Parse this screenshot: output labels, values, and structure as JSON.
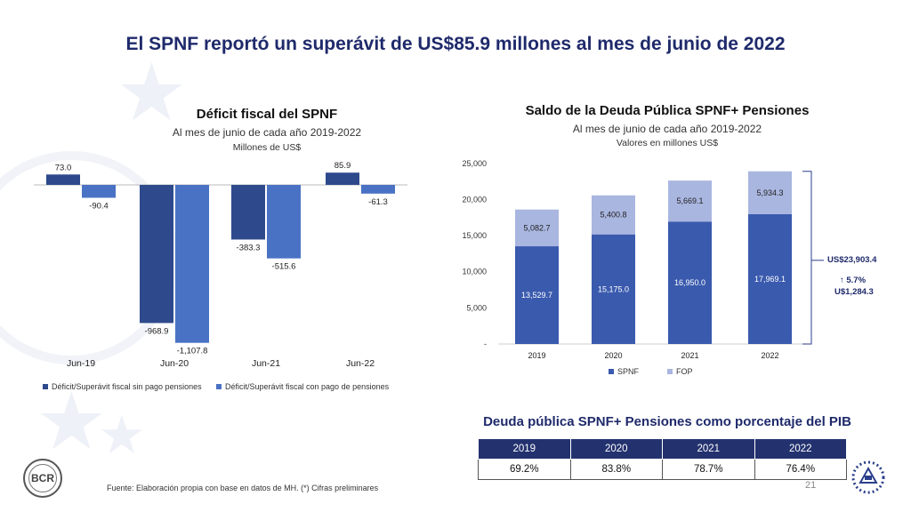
{
  "slide": {
    "title": "El SPNF reportó un superávit de US$85.9 millones al mes de junio de 2022",
    "footer": "Fuente: Elaboración propia con base en datos de MH. (*) Cifras preliminares",
    "page_number": "21",
    "seal_text": "BCR"
  },
  "chart_data": [
    {
      "type": "bar",
      "title": "Déficit fiscal del SPNF",
      "subtitle": "Al mes de junio de cada año 2019-2022",
      "unit_label": "Millones de US$",
      "categories": [
        "Jun-19",
        "Jun-20",
        "Jun-21",
        "Jun-22"
      ],
      "series": [
        {
          "name": "Déficit/Superávit fiscal sin pago pensiones",
          "color": "#2e4a8c",
          "values": [
            73.0,
            -968.9,
            -383.3,
            85.9
          ],
          "labels": [
            "73.0",
            "-968.9",
            "-383.3",
            "85.9"
          ]
        },
        {
          "name": "Déficit/Superávit fiscal con pago de pensiones",
          "color": "#4a72c4",
          "values": [
            -90.4,
            -1107.8,
            -515.6,
            -61.3
          ],
          "labels": [
            "-90.4",
            "-1,107.8",
            "-515.6",
            "-61.3"
          ]
        }
      ],
      "legend": "bottom"
    },
    {
      "type": "bar",
      "stacked": true,
      "title": "Saldo de la Deuda Pública SPNF+ Pensiones",
      "subtitle": "Al mes de junio de cada año 2019-2022",
      "unit_label": "Valores en millones US$",
      "categories": [
        "2019",
        "2020",
        "2021",
        "2022"
      ],
      "series": [
        {
          "name": "SPNF",
          "color": "#3a5aae",
          "values": [
            13529.7,
            15175.0,
            16950.0,
            17969.1
          ],
          "labels": [
            "13,529.7",
            "15,175.0",
            "16,950.0",
            "17,969.1"
          ]
        },
        {
          "name": "FOP",
          "color": "#a9b6e0",
          "values": [
            5082.7,
            5400.8,
            5669.1,
            5934.3
          ],
          "labels": [
            "5,082.7",
            "5,400.8",
            "5,669.1",
            "5,934.3"
          ]
        }
      ],
      "ylim": [
        0,
        25000
      ],
      "y_ticks": [
        "-",
        "5,000",
        "10,000",
        "15,000",
        "20,000",
        "25,000"
      ],
      "legend": "bottom",
      "annotation": {
        "total": "US$23,903.4",
        "change_pct": "↑ 5.7%",
        "change_abs": "U$1,284.3"
      }
    },
    {
      "type": "table",
      "title": "Deuda pública SPNF+ Pensiones como porcentaje del PIB",
      "headers": [
        "2019",
        "2020",
        "2021",
        "2022"
      ],
      "rows": [
        [
          "69.2%",
          "83.8%",
          "78.7%",
          "76.4%"
        ]
      ]
    }
  ]
}
